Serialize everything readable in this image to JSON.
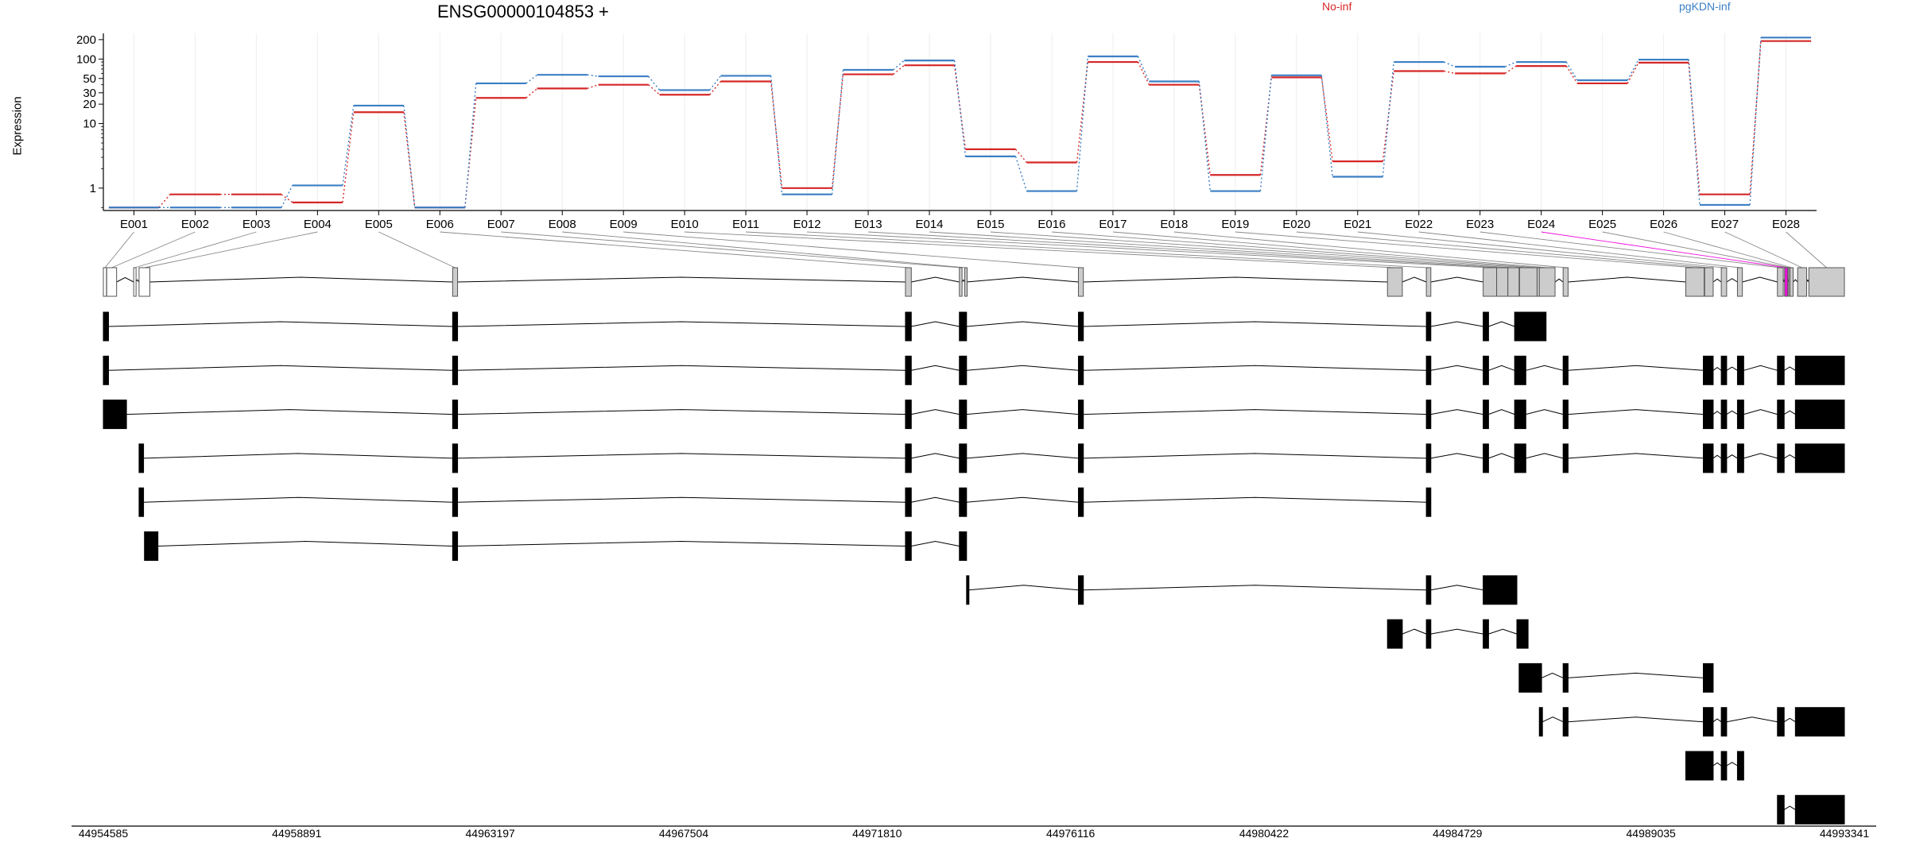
{
  "chart_data": {
    "type": "line",
    "title": "ENSG00000104853 +",
    "ylabel": "Expression",
    "xlabel": "",
    "yscale": "log",
    "yticks": [
      "1",
      "10",
      "20",
      "30",
      "50",
      "100",
      "200"
    ],
    "ytick_values": [
      1,
      10,
      20,
      30,
      50,
      100,
      200
    ],
    "ylim": [
      0.45,
      250
    ],
    "legend_placement": "top-right",
    "categories": [
      "E001",
      "E002",
      "E003",
      "E004",
      "E005",
      "E006",
      "E007",
      "E008",
      "E009",
      "E010",
      "E011",
      "E012",
      "E013",
      "E014",
      "E015",
      "E016",
      "E017",
      "E018",
      "E019",
      "E020",
      "E021",
      "E022",
      "E023",
      "E024",
      "E025",
      "E026",
      "E027",
      "E028"
    ],
    "series": [
      {
        "name": "No-inf",
        "color": "#d62728",
        "values": [
          0.5,
          0.8,
          0.8,
          0.6,
          15,
          0.5,
          25,
          35,
          40,
          28,
          45,
          1,
          58,
          80,
          4,
          2.5,
          90,
          40,
          1.6,
          52,
          2.6,
          65,
          60,
          78,
          42,
          88,
          0.8,
          190
        ]
      },
      {
        "name": "pgKDN-inf",
        "color": "#3b7fc4",
        "values": [
          0.5,
          0.5,
          0.5,
          1.1,
          19,
          0.5,
          42,
          57,
          54,
          33,
          55,
          0.8,
          68,
          95,
          3.1,
          0.9,
          110,
          45,
          0.9,
          56,
          1.5,
          90,
          76,
          90,
          47,
          98,
          0.55,
          215
        ]
      }
    ],
    "genomic_axis": {
      "start": 44954585,
      "end": 44993341,
      "tick_labels": [
        "44954585",
        "44958891",
        "44963197",
        "44967504",
        "44971810",
        "44976116",
        "44980422",
        "44984729",
        "44989035",
        "44993341"
      ]
    },
    "exon_bins": [
      [
        44954585,
        44954655
      ],
      [
        44954660,
        44954880
      ],
      [
        44955260,
        44955300
      ],
      [
        44955380,
        44955620
      ],
      [
        44962360,
        44962470
      ],
      [
        44972440,
        44972570
      ],
      [
        44973640,
        44973700
      ],
      [
        44973760,
        44973800
      ],
      [
        44976290,
        44976400
      ],
      [
        44983170,
        44983500
      ],
      [
        44984035,
        44984135
      ],
      [
        44985300,
        44985600
      ],
      [
        44985600,
        44985850
      ],
      [
        44985850,
        44986100
      ],
      [
        44986110,
        44986500
      ],
      [
        44986500,
        44986550
      ],
      [
        44986550,
        44986900
      ],
      [
        44987080,
        44987190
      ],
      [
        44989810,
        44990220
      ],
      [
        44990230,
        44990420
      ],
      [
        44990600,
        44990720
      ],
      [
        44990960,
        44991070
      ],
      [
        44991850,
        44991980
      ],
      [
        44992010,
        44992080
      ],
      [
        44992100,
        44992120
      ],
      [
        44992130,
        44992200
      ],
      [
        44992300,
        44992500
      ],
      [
        44992550,
        44993341
      ]
    ],
    "highlighted_exon": "E024",
    "highlight_color": "#ee11dd",
    "transcripts": [
      [
        [
          44954585,
          44954700
        ],
        [
          44962360,
          44962470
        ],
        [
          44972440,
          44972570
        ],
        [
          44973640,
          44973800
        ],
        [
          44976290,
          44976400
        ],
        [
          44984035,
          44984135
        ],
        [
          44985300,
          44985420
        ],
        [
          44986000,
          44986700
        ]
      ],
      [
        [
          44954585,
          44954700
        ],
        [
          44962360,
          44962470
        ],
        [
          44972440,
          44972570
        ],
        [
          44973640,
          44973800
        ],
        [
          44976290,
          44976400
        ],
        [
          44984035,
          44984135
        ],
        [
          44985300,
          44985420
        ],
        [
          44986000,
          44986250
        ],
        [
          44987080,
          44987190
        ],
        [
          44990200,
          44990420
        ],
        [
          44990600,
          44990720
        ],
        [
          44990960,
          44991100
        ],
        [
          44991850,
          44992000
        ],
        [
          44992250,
          44993341
        ]
      ],
      [
        [
          44954585,
          44955100
        ],
        [
          44962360,
          44962470
        ],
        [
          44972440,
          44972570
        ],
        [
          44973640,
          44973800
        ],
        [
          44976290,
          44976400
        ],
        [
          44984035,
          44984135
        ],
        [
          44985300,
          44985420
        ],
        [
          44986000,
          44986250
        ],
        [
          44987080,
          44987190
        ],
        [
          44990200,
          44990420
        ],
        [
          44990600,
          44990720
        ],
        [
          44990960,
          44991100
        ],
        [
          44991850,
          44992000
        ],
        [
          44992250,
          44993341
        ]
      ],
      [
        [
          44955380,
          44955480
        ],
        [
          44962360,
          44962470
        ],
        [
          44972440,
          44972570
        ],
        [
          44973640,
          44973800
        ],
        [
          44976290,
          44976400
        ],
        [
          44984035,
          44984135
        ],
        [
          44985300,
          44985420
        ],
        [
          44986000,
          44986250
        ],
        [
          44987080,
          44987190
        ],
        [
          44990200,
          44990420
        ],
        [
          44990600,
          44990720
        ],
        [
          44990960,
          44991100
        ],
        [
          44991850,
          44992000
        ],
        [
          44992250,
          44993341
        ]
      ],
      [
        [
          44955380,
          44955480
        ],
        [
          44962360,
          44962470
        ],
        [
          44972440,
          44972570
        ],
        [
          44973640,
          44973800
        ],
        [
          44976290,
          44976400
        ],
        [
          44984035,
          44984135
        ]
      ],
      [
        [
          44955500,
          44955800
        ],
        [
          44962360,
          44962470
        ],
        [
          44972440,
          44972570
        ],
        [
          44973640,
          44973800
        ]
      ],
      [
        [
          44973800,
          44973850
        ],
        [
          44976290,
          44976400
        ],
        [
          44984035,
          44984135
        ],
        [
          44985300,
          44986050
        ]
      ],
      [
        [
          44983170,
          44983500
        ],
        [
          44984035,
          44984135
        ],
        [
          44985300,
          44985420
        ],
        [
          44986050,
          44986300
        ]
      ],
      [
        [
          44986100,
          44986600
        ],
        [
          44987080,
          44987190
        ],
        [
          44990200,
          44990420
        ]
      ],
      [
        [
          44986550,
          44986620
        ],
        [
          44987080,
          44987190
        ],
        [
          44990200,
          44990420
        ],
        [
          44990600,
          44990720
        ],
        [
          44991850,
          44992000
        ],
        [
          44992250,
          44993341
        ]
      ],
      [
        [
          44989810,
          44990420
        ],
        [
          44990600,
          44990720
        ],
        [
          44990960,
          44991100
        ]
      ],
      [
        [
          44991850,
          44992000
        ],
        [
          44992250,
          44993341
        ]
      ]
    ]
  }
}
